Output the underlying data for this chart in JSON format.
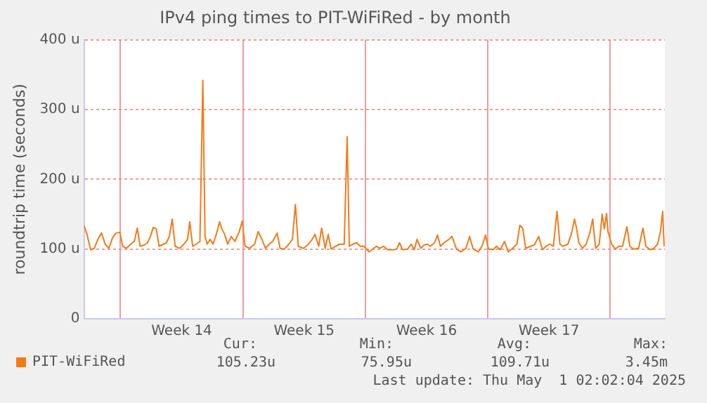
{
  "chart_data": {
    "type": "line",
    "title": "IPv4 ping times to PIT-WiFiRed - by month",
    "ylabel": "roundtrip time (seconds)",
    "x": [
      "2025-03-28T22:00",
      "2025-03-29T02:00",
      "2025-03-29T07:00",
      "2025-03-29T12:00",
      "2025-03-29T17:00",
      "2025-03-29T22:00",
      "2025-03-30T03:00",
      "2025-03-30T08:00",
      "2025-03-30T13:00",
      "2025-03-30T18:00",
      "2025-03-30T23:00",
      "2025-03-31T03:00",
      "2025-03-31T08:00",
      "2025-03-31T14:00",
      "2025-03-31T19:00",
      "2025-03-31T23:00",
      "2025-04-01T03:00",
      "2025-04-01T09:00",
      "2025-04-01T13:00",
      "2025-04-01T17:00",
      "2025-04-01T21:00",
      "2025-04-02T01:00",
      "2025-04-02T05:00",
      "2025-04-02T09:00",
      "2025-04-02T15:00",
      "2025-04-02T19:00",
      "2025-04-02T23:00",
      "2025-04-03T03:00",
      "2025-04-03T09:00",
      "2025-04-03T15:00",
      "2025-04-03T20:00",
      "2025-04-03T23:00",
      "2025-04-04T03:00",
      "2025-04-04T08:00",
      "2025-04-04T13:00",
      "2025-04-04T17:00",
      "2025-04-04T20:00",
      "2025-04-04T23:00",
      "2025-04-05T03:00",
      "2025-04-05T07:00",
      "2025-04-05T12:00",
      "2025-04-05T16:00",
      "2025-04-05T19:00",
      "2025-04-05T23:00",
      "2025-04-06T03:00",
      "2025-04-06T08:00",
      "2025-04-06T13:00",
      "2025-04-06T19:00",
      "2025-04-06T23:00",
      "2025-04-07T03:00",
      "2025-04-07T09:00",
      "2025-04-07T16:00",
      "2025-04-07T21:00",
      "2025-04-08T02:00",
      "2025-04-08T07:00",
      "2025-04-08T12:00",
      "2025-04-08T17:00",
      "2025-04-08T23:00",
      "2025-04-09T03:00",
      "2025-04-09T09:00",
      "2025-04-09T15:00",
      "2025-04-09T20:00",
      "2025-04-10T00:00",
      "2025-04-10T04:00",
      "2025-04-10T11:00",
      "2025-04-10T17:00",
      "2025-04-10T23:00",
      "2025-04-11T03:00",
      "2025-04-11T08:00",
      "2025-04-11T12:00",
      "2025-04-11T17:00",
      "2025-04-11T21:00",
      "2025-04-12T01:00",
      "2025-04-12T07:00",
      "2025-04-12T13:00",
      "2025-04-12T19:00",
      "2025-04-12T23:00",
      "2025-04-13T02:00",
      "2025-04-13T07:00",
      "2025-04-13T12:00",
      "2025-04-13T17:00",
      "2025-04-13T22:00",
      "2025-04-14T05:00",
      "2025-04-14T09:00",
      "2025-04-14T15:00",
      "2025-04-14T20:00",
      "2025-04-15T01:00",
      "2025-04-15T07:00",
      "2025-04-15T14:00",
      "2025-04-15T19:00",
      "2025-04-15T23:00",
      "2025-04-16T03:00",
      "2025-04-16T10:00",
      "2025-04-16T15:00",
      "2025-04-16T19:00",
      "2025-04-16T23:00",
      "2025-04-17T04:00",
      "2025-04-17T09:00",
      "2025-04-17T13:00",
      "2025-04-17T17:00",
      "2025-04-17T23:00",
      "2025-04-18T03:00",
      "2025-04-18T07:00",
      "2025-04-18T12:00",
      "2025-04-18T19:00",
      "2025-04-18T23:00",
      "2025-04-19T05:00",
      "2025-04-19T11:00",
      "2025-04-19T18:00",
      "2025-04-19T23:00",
      "2025-04-20T04:00",
      "2025-04-20T11:00",
      "2025-04-20T16:00",
      "2025-04-20T21:00",
      "2025-04-21T01:00",
      "2025-04-21T07:00",
      "2025-04-21T12:00",
      "2025-04-21T17:00",
      "2025-04-21T23:00",
      "2025-04-22T04:00",
      "2025-04-22T09:00",
      "2025-04-22T16:00",
      "2025-04-22T20:00",
      "2025-04-23T00:00",
      "2025-04-23T04:00",
      "2025-04-23T11:00",
      "2025-04-23T16:00",
      "2025-04-23T22:00",
      "2025-04-24T03:00",
      "2025-04-24T08:00",
      "2025-04-24T13:00",
      "2025-04-24T18:00",
      "2025-04-24T23:00",
      "2025-04-25T03:00",
      "2025-04-25T07:00",
      "2025-04-25T14:00",
      "2025-04-25T19:00",
      "2025-04-25T23:00",
      "2025-04-26T02:00",
      "2025-04-26T05:00",
      "2025-04-26T10:00",
      "2025-04-26T15:00",
      "2025-04-26T20:00",
      "2025-04-27T00:00",
      "2025-04-27T04:00",
      "2025-04-27T09:00",
      "2025-04-27T13:00",
      "2025-04-27T16:00",
      "2025-04-27T19:00",
      "2025-04-27T21:00",
      "2025-04-28T02:00",
      "2025-04-28T07:00",
      "2025-04-28T12:00",
      "2025-04-28T17:00",
      "2025-04-28T23:00",
      "2025-04-29T03:00",
      "2025-04-29T08:00",
      "2025-04-29T15:00",
      "2025-04-29T21:00",
      "2025-04-30T01:00",
      "2025-04-30T07:00",
      "2025-04-30T12:00",
      "2025-04-30T17:00",
      "2025-04-30T21:00",
      "2025-05-01T00:00",
      "2025-05-01T02:00"
    ],
    "series": [
      {
        "name": "PIT-WiFiRed",
        "color": "#f57a1a",
        "values": [
          134,
          121,
          99,
          101,
          114,
          123,
          107,
          101,
          116,
          123,
          124,
          104,
          101,
          107,
          111,
          130,
          104,
          106,
          109,
          118,
          131,
          129,
          104,
          106,
          109,
          118,
          143,
          104,
          101,
          107,
          114,
          139,
          104,
          107,
          111,
          342,
          118,
          107,
          114,
          107,
          123,
          139,
          129,
          121,
          107,
          118,
          111,
          125,
          140,
          104,
          101,
          107,
          125,
          114,
          101,
          107,
          111,
          123,
          101,
          100,
          107,
          114,
          164,
          104,
          101,
          106,
          114,
          121,
          104,
          130,
          101,
          121,
          100,
          104,
          107,
          107,
          261,
          104,
          107,
          109,
          104,
          104,
          96,
          99,
          104,
          101,
          104,
          99,
          99,
          100,
          109,
          99,
          100,
          107,
          99,
          114,
          101,
          106,
          107,
          104,
          109,
          120,
          104,
          109,
          114,
          118,
          100,
          96,
          101,
          118,
          100,
          96,
          104,
          120,
          100,
          99,
          104,
          99,
          111,
          96,
          100,
          107,
          134,
          130,
          101,
          104,
          106,
          118,
          99,
          104,
          107,
          104,
          154,
          107,
          104,
          107,
          123,
          143,
          129,
          109,
          101,
          107,
          123,
          143,
          101,
          107,
          150,
          129,
          151,
          125,
          107,
          100,
          104,
          104,
          132,
          104,
          100,
          101,
          130,
          104,
          99,
          101,
          107,
          125,
          154,
          104
        ]
      }
    ],
    "xlim": [
      "2025-03-28T22:00",
      "2025-05-01T03:00"
    ],
    "xticks": [
      {
        "value": "2025-03-31T00:00",
        "label": null
      },
      {
        "value": "2025-04-03T12:00",
        "label": "Week 14"
      },
      {
        "value": "2025-04-07T00:00",
        "label": null
      },
      {
        "value": "2025-04-10T12:00",
        "label": "Week 15"
      },
      {
        "value": "2025-04-14T00:00",
        "label": null
      },
      {
        "value": "2025-04-17T12:00",
        "label": "Week 16"
      },
      {
        "value": "2025-04-21T00:00",
        "label": null
      },
      {
        "value": "2025-04-24T12:00",
        "label": "Week 17"
      },
      {
        "value": "2025-04-28T00:00",
        "label": null
      }
    ],
    "ylim": [
      0,
      400
    ],
    "yticks": [
      0,
      {
        "value": 100,
        "label": "100 u"
      },
      {
        "value": 200,
        "label": "200 u"
      },
      {
        "value": 300,
        "label": "300 u"
      },
      {
        "value": 400,
        "label": "400 u"
      }
    ],
    "grid": true,
    "legend": "bottom left",
    "marker": "none",
    "line_style": "solid",
    "annotations": [
      "Cur:",
      "Min:",
      "Avg:",
      "Max:",
      "105.23u",
      "75.95u",
      "109.71u",
      "3.45m",
      "Last update: Thu May  1 02:02:04 2025"
    ]
  }
}
